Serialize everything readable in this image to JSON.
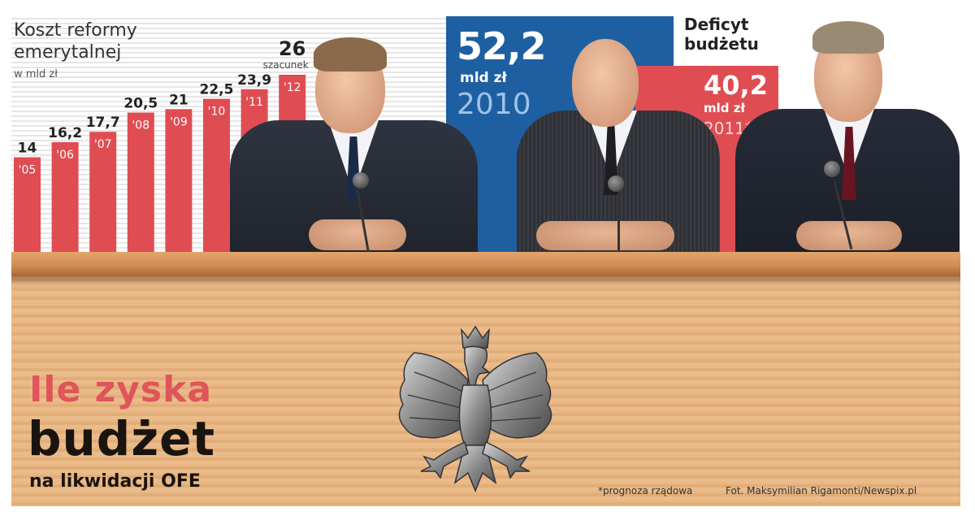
{
  "chart_data": {
    "type": "bar",
    "title": "Koszt reformy emerytalnej",
    "unit": "w mld zł",
    "categories": [
      "'05",
      "'06",
      "'07",
      "'08",
      "'09",
      "'10",
      "'11",
      "'12"
    ],
    "values": [
      14,
      16.2,
      17.7,
      20.5,
      21,
      22.5,
      23.9,
      26
    ],
    "value_labels": [
      "14",
      "16,2",
      "17,7",
      "20,5",
      "21",
      "22,5",
      "23,9",
      "26"
    ],
    "annotations": [
      {
        "category": "'12",
        "text": "szacunek"
      }
    ],
    "ylim": [
      0,
      26
    ],
    "bar_color": "#df4d52",
    "grid": false
  },
  "deficit": {
    "title": "Deficyt budżetu",
    "items": [
      {
        "value": "52,2",
        "unit": "mld zł",
        "year": "2010",
        "color": "#1e5fa2"
      },
      {
        "value": "40,2",
        "unit": "mld zł",
        "year": "2011*",
        "color": "#df4d52"
      }
    ]
  },
  "headline": {
    "line1": "Ile zyska",
    "line2": "budżet",
    "line3": "na likwidacji OFE"
  },
  "footnote": "*prognoza rządowa",
  "credit": "Fot. Maksymilian Rigamonti/Newspix.pl",
  "colors": {
    "accent_red": "#df4d52",
    "accent_blue": "#1e5fa2",
    "desk": "#e2ad77"
  }
}
